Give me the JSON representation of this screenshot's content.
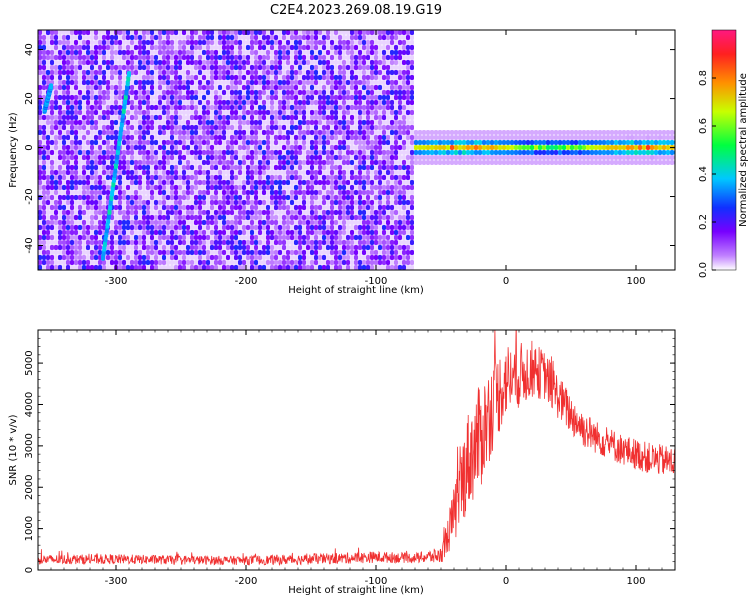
{
  "figure": {
    "title": "C2E4.2023.269.08.19.G19"
  },
  "chart_data": [
    {
      "type": "heatmap",
      "xlabel": "Height of straight line (km)",
      "ylabel": "Frequency (Hz)",
      "xlim": [
        -360,
        130
      ],
      "ylim": [
        -50,
        48
      ],
      "x_ticks": [
        -300,
        -200,
        -100,
        0,
        100
      ],
      "x_tick_labels": [
        "-300",
        "-200",
        "-100",
        "0",
        "100"
      ],
      "y_ticks": [
        -40,
        -20,
        0,
        20,
        40
      ],
      "y_tick_labels": [
        "-40",
        "-20",
        "0",
        "20",
        "40"
      ],
      "colorbar": {
        "label": "Normalized spectral amplitude",
        "range": [
          0,
          1
        ],
        "ticks": [
          0.0,
          0.2,
          0.4,
          0.6,
          0.8
        ],
        "tick_labels": [
          "0.0",
          "0.2",
          "0.4",
          "0.6",
          "0.8"
        ],
        "colormap": "rainbow (white-purple-blue-cyan-green-yellow-red-magenta)"
      },
      "features": {
        "noise_region_x": [
          -360,
          -70
        ],
        "signal_band": {
          "x": [
            -70,
            130
          ],
          "frequency_center": 0,
          "frequency_halfwidth": 3,
          "peak_amplitude": 0.9
        },
        "streaks": [
          {
            "x0": -310,
            "f0": -45,
            "x1": -290,
            "f1": 30,
            "amplitude": 0.45
          },
          {
            "x0": -355,
            "f0": 15,
            "x1": -350,
            "f1": 25,
            "amplitude": 0.4
          }
        ]
      },
      "grid": false
    },
    {
      "type": "line",
      "xlabel": "Height of straight line (km)",
      "ylabel": "SNR (10 * v/v)",
      "xlim": [
        -360,
        130
      ],
      "ylim": [
        0,
        5800
      ],
      "x_ticks": [
        -300,
        -200,
        -100,
        0,
        100
      ],
      "x_tick_labels": [
        "-300",
        "-200",
        "-100",
        "0",
        "100"
      ],
      "y_ticks": [
        0,
        1000,
        2000,
        3000,
        4000,
        5000
      ],
      "y_tick_labels": [
        "0",
        "1000",
        "2000",
        "3000",
        "4000",
        "5000"
      ],
      "series": [
        {
          "color": "#f03030",
          "x": [
            -360,
            -300,
            -250,
            -200,
            -150,
            -100,
            -70,
            -50,
            -40,
            -30,
            -20,
            -10,
            0,
            10,
            20,
            30,
            40,
            50,
            60,
            70,
            80,
            90,
            100,
            110,
            120,
            130
          ],
          "y": [
            250,
            260,
            240,
            230,
            260,
            310,
            290,
            350,
            1300,
            2600,
            3200,
            4000,
            4600,
            4700,
            4850,
            4700,
            4200,
            3750,
            3400,
            3200,
            3050,
            2900,
            2800,
            2700,
            2650,
            2600
          ],
          "noise": [
            120,
            120,
            110,
            110,
            130,
            140,
            120,
            200,
            700,
            1200,
            1300,
            1100,
            900,
            800,
            700,
            600,
            550,
            500,
            450,
            400,
            400,
            380,
            380,
            380,
            380,
            380
          ]
        }
      ],
      "grid": false
    }
  ]
}
